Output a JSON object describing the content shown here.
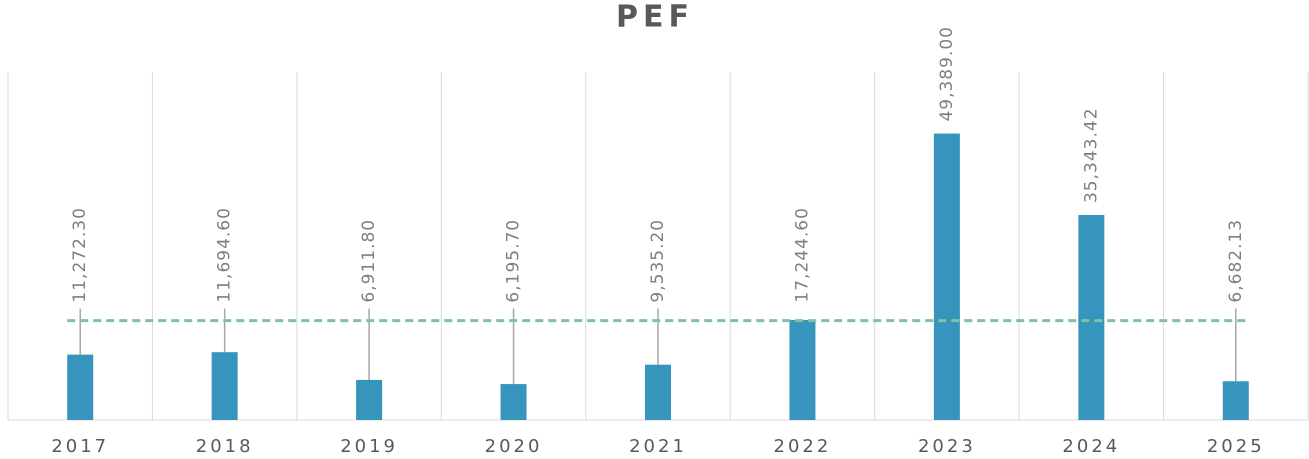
{
  "chart_data": {
    "type": "bar",
    "title": "PEF",
    "categories": [
      "2017",
      "2018",
      "2019",
      "2020",
      "2021",
      "2022",
      "2023",
      "2024",
      "2025"
    ],
    "values": [
      11272.3,
      11694.6,
      6911.8,
      6195.7,
      9535.2,
      17244.6,
      49389.0,
      35343.42,
      6682.13
    ],
    "value_labels": [
      "11,272.30",
      "11,694.60",
      "6,911.80",
      "6,195.70",
      "9,535.20",
      "17,244.60",
      "49,389.00",
      "35,343.42",
      "6,682.13"
    ],
    "color": "#3795bd",
    "reference_line": {
      "value": 17140.97,
      "color": "#7dc3a0",
      "style": "dashed"
    },
    "ylim": [
      0,
      60000
    ],
    "grid": "vertical"
  }
}
